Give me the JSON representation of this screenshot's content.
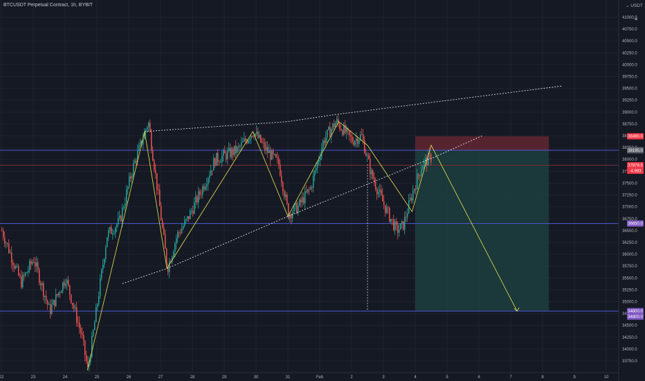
{
  "header": {
    "symbol_title": "BTCUSDT Perpetual Contract, 1h, BYBIT",
    "currency_label": "USDT",
    "currency_menu_icon": "chevron-down-icon",
    "lock_icon": "lock-icon"
  },
  "chart_data": {
    "type": "candlestick",
    "title": "BTCUSDT Perpetual Contract, 1h, BYBIT",
    "ylim": [
      33500,
      41500
    ],
    "y_ticks": [
      "41000.0",
      "40750.0",
      "40500.0",
      "40250.0",
      "40000.0",
      "39750.0",
      "39500.0",
      "39250.0",
      "39000.0",
      "38750.0",
      "38500.0",
      "38250.0",
      "38000.0",
      "37750.0",
      "37500.0",
      "37250.0",
      "37000.0",
      "36750.0",
      "36500.0",
      "36250.0",
      "36000.0",
      "35750.0",
      "35500.0",
      "35250.0",
      "35000.0",
      "34750.0",
      "34500.0",
      "34250.0",
      "34000.0",
      "33750.0"
    ],
    "x_ticks": [
      "22",
      "23",
      "24",
      "25",
      "26",
      "27",
      "28",
      "29",
      "30",
      "31",
      "Feb",
      "2",
      "3",
      "4",
      "5",
      "6",
      "7",
      "8",
      "9",
      "10"
    ],
    "price_path": [
      [
        "22",
        36500
      ],
      [
        "22.6",
        35400
      ],
      [
        "23",
        35900
      ],
      [
        "23.5",
        34800
      ],
      [
        "24",
        35500
      ],
      [
        "24.5",
        34300
      ],
      [
        "24.7",
        33550
      ],
      [
        "25.3",
        36400
      ],
      [
        "25.7",
        36700
      ],
      [
        "26.1",
        37800
      ],
      [
        "26.6",
        38800
      ],
      [
        "26.9",
        37300
      ],
      [
        "27.2",
        35700
      ],
      [
        "27.5",
        36400
      ],
      [
        "27.8",
        36700
      ],
      [
        "28.3",
        37400
      ],
      [
        "28.7",
        38000
      ],
      [
        "29.4",
        38200
      ],
      [
        "29.9",
        38600
      ],
      [
        "30.3",
        38200
      ],
      [
        "30.7",
        37900
      ],
      [
        "31",
        36850
      ],
      [
        "31.3",
        37000
      ],
      [
        "31.7",
        37400
      ],
      [
        "Feb.1",
        38400
      ],
      [
        "Feb.5",
        38800
      ],
      [
        "2",
        38400
      ],
      [
        "2.3",
        38500
      ],
      [
        "2.6",
        37700
      ],
      [
        "2.9",
        37200
      ],
      [
        "3.1",
        36900
      ],
      [
        "3.4",
        36500
      ],
      [
        "3.6",
        36600
      ],
      [
        "3.9",
        37300
      ],
      [
        "4.2",
        37900
      ],
      [
        "4.5",
        38050
      ]
    ],
    "price_lines": [
      {
        "value": 38490.0,
        "label": "38490.0",
        "color": "#f23645",
        "role": "stop-loss"
      },
      {
        "value": 38195.0,
        "label": "38195.0",
        "color": "#5d606b",
        "role": "entry"
      },
      {
        "value": 37879.5,
        "label": "37879.5",
        "sublabel": "-4.983",
        "color": "#f23645",
        "role": "last-price"
      },
      {
        "value": 36650.0,
        "label": "36650.0",
        "color": "#7e57c2",
        "role": "support"
      },
      {
        "value": 34800.0,
        "label": "34800.0",
        "sublabel": "34800.0",
        "color": "#7e57c2",
        "role": "target"
      }
    ],
    "drawings": {
      "rising_wedge_upper": [
        [
          "26.5",
          38590
        ],
        [
          "31",
          38800
        ],
        [
          "Feb.5",
          38950
        ],
        [
          "8.6",
          39550
        ]
      ],
      "rising_wedge_lower": [
        [
          "25.8",
          35380
        ],
        [
          "27.2",
          35700
        ],
        [
          "31",
          36800
        ],
        [
          "4.6",
          38050
        ],
        [
          "6.1",
          38500
        ]
      ],
      "zigzag_pattern": [
        [
          "24.7",
          33550
        ],
        [
          "26.5",
          38590
        ],
        [
          "27.2",
          35700
        ],
        [
          "29.9",
          38590
        ],
        [
          "31",
          36800
        ],
        [
          "Feb.6",
          38800
        ],
        [
          "2.5",
          38300
        ],
        [
          "3.9",
          36900
        ],
        [
          "4.5",
          38300
        ],
        [
          "7.2",
          34800
        ]
      ],
      "vertical_marker_at": "2.5",
      "short_position": {
        "entry": 38195.0,
        "stop": 38490.0,
        "target": 34800.0,
        "from": "4",
        "to": "8.2"
      }
    },
    "grid": true,
    "colors": {
      "background": "#151924",
      "bull": "#26a69a",
      "bear": "#ef5350",
      "zigzag": "#d4d44a",
      "wedge": "#ffffff",
      "risk_zone": "#5c2631",
      "reward_zone": "#1d4341",
      "horizontal_lines": "#4e5ad8"
    }
  }
}
